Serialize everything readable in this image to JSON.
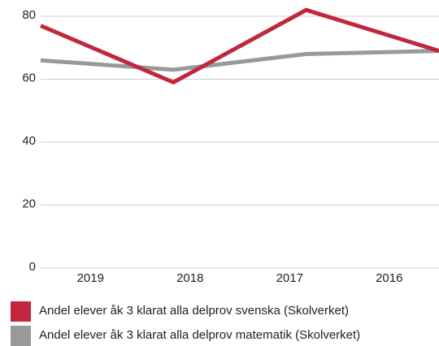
{
  "chart_data": {
    "type": "line",
    "categories": [
      "2019",
      "2018",
      "2017",
      "2016"
    ],
    "series": [
      {
        "name": "Andel elever åk 3 klarat alla delprov svenska (Skolverket)",
        "color": "#c0273d",
        "values": [
          77,
          59,
          82,
          69
        ]
      },
      {
        "name": "Andel elever åk 3 klarat alla delprov matematik (Skolverket)",
        "color": "#999999",
        "values": [
          66,
          63,
          68,
          69
        ]
      }
    ],
    "ylim": [
      0,
      80
    ],
    "yticks": [
      0,
      20,
      40,
      60,
      80
    ],
    "grid": true,
    "legend": "bottom"
  }
}
